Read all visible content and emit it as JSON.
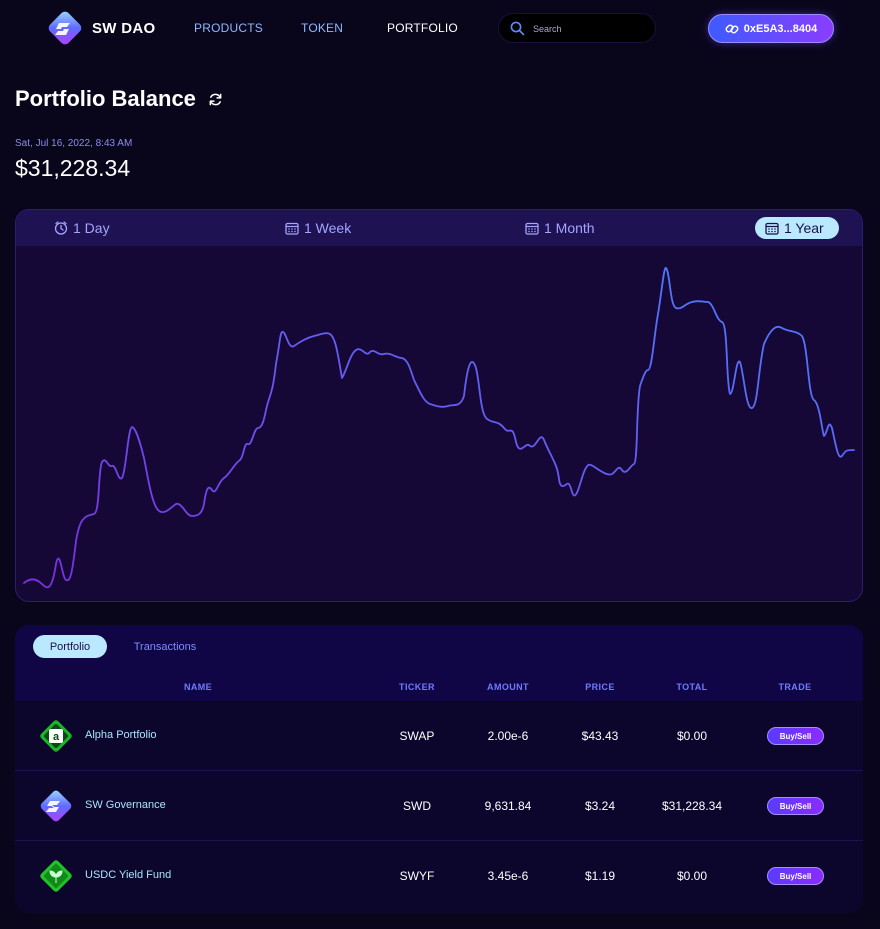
{
  "header": {
    "brand": "SW DAO",
    "nav": [
      {
        "label": "PRODUCTS"
      },
      {
        "label": "TOKEN"
      },
      {
        "label": "PORTFOLIO"
      }
    ],
    "search_placeholder": "Search",
    "wallet_label": "0xE5A3...8404"
  },
  "balance": {
    "title": "Portfolio Balance",
    "timestamp": "Sat, Jul 16, 2022, 8:43 AM",
    "value": "$31,228.34"
  },
  "range_tabs": [
    {
      "label": "1 Day",
      "icon": "clock-icon"
    },
    {
      "label": "1 Week",
      "icon": "calendar-icon"
    },
    {
      "label": "1 Month",
      "icon": "calendar-icon"
    },
    {
      "label": "1 Year",
      "icon": "calendar-icon",
      "active": true
    }
  ],
  "colors": {
    "background": "#09061c",
    "accent": "#b9e8ff",
    "line_start": "#7a2ee0",
    "line_end": "#4a7fff",
    "button": "#6a36ff"
  },
  "portfolio_tabs": [
    {
      "label": "Portfolio",
      "active": true
    },
    {
      "label": "Transactions"
    }
  ],
  "table": {
    "columns": [
      "NAME",
      "TICKER",
      "AMOUNT",
      "PRICE",
      "TOTAL",
      "TRADE"
    ],
    "rows": [
      {
        "name": "Alpha Portfolio",
        "ticker": "SWAP",
        "amount": "2.00e-6",
        "price": "$43.43",
        "total": "$0.00",
        "trade": "Buy/Sell",
        "icon": "alpha-portfolio-icon"
      },
      {
        "name": "SW Governance",
        "ticker": "SWD",
        "amount": "9,631.84",
        "price": "$3.24",
        "total": "$31,228.34",
        "trade": "Buy/Sell",
        "icon": "sw-governance-icon"
      },
      {
        "name": "USDC Yield Fund",
        "ticker": "SWYF",
        "amount": "3.45e-6",
        "price": "$1.19",
        "total": "$0.00",
        "trade": "Buy/Sell",
        "icon": "usdc-yield-fund-icon"
      }
    ]
  }
}
